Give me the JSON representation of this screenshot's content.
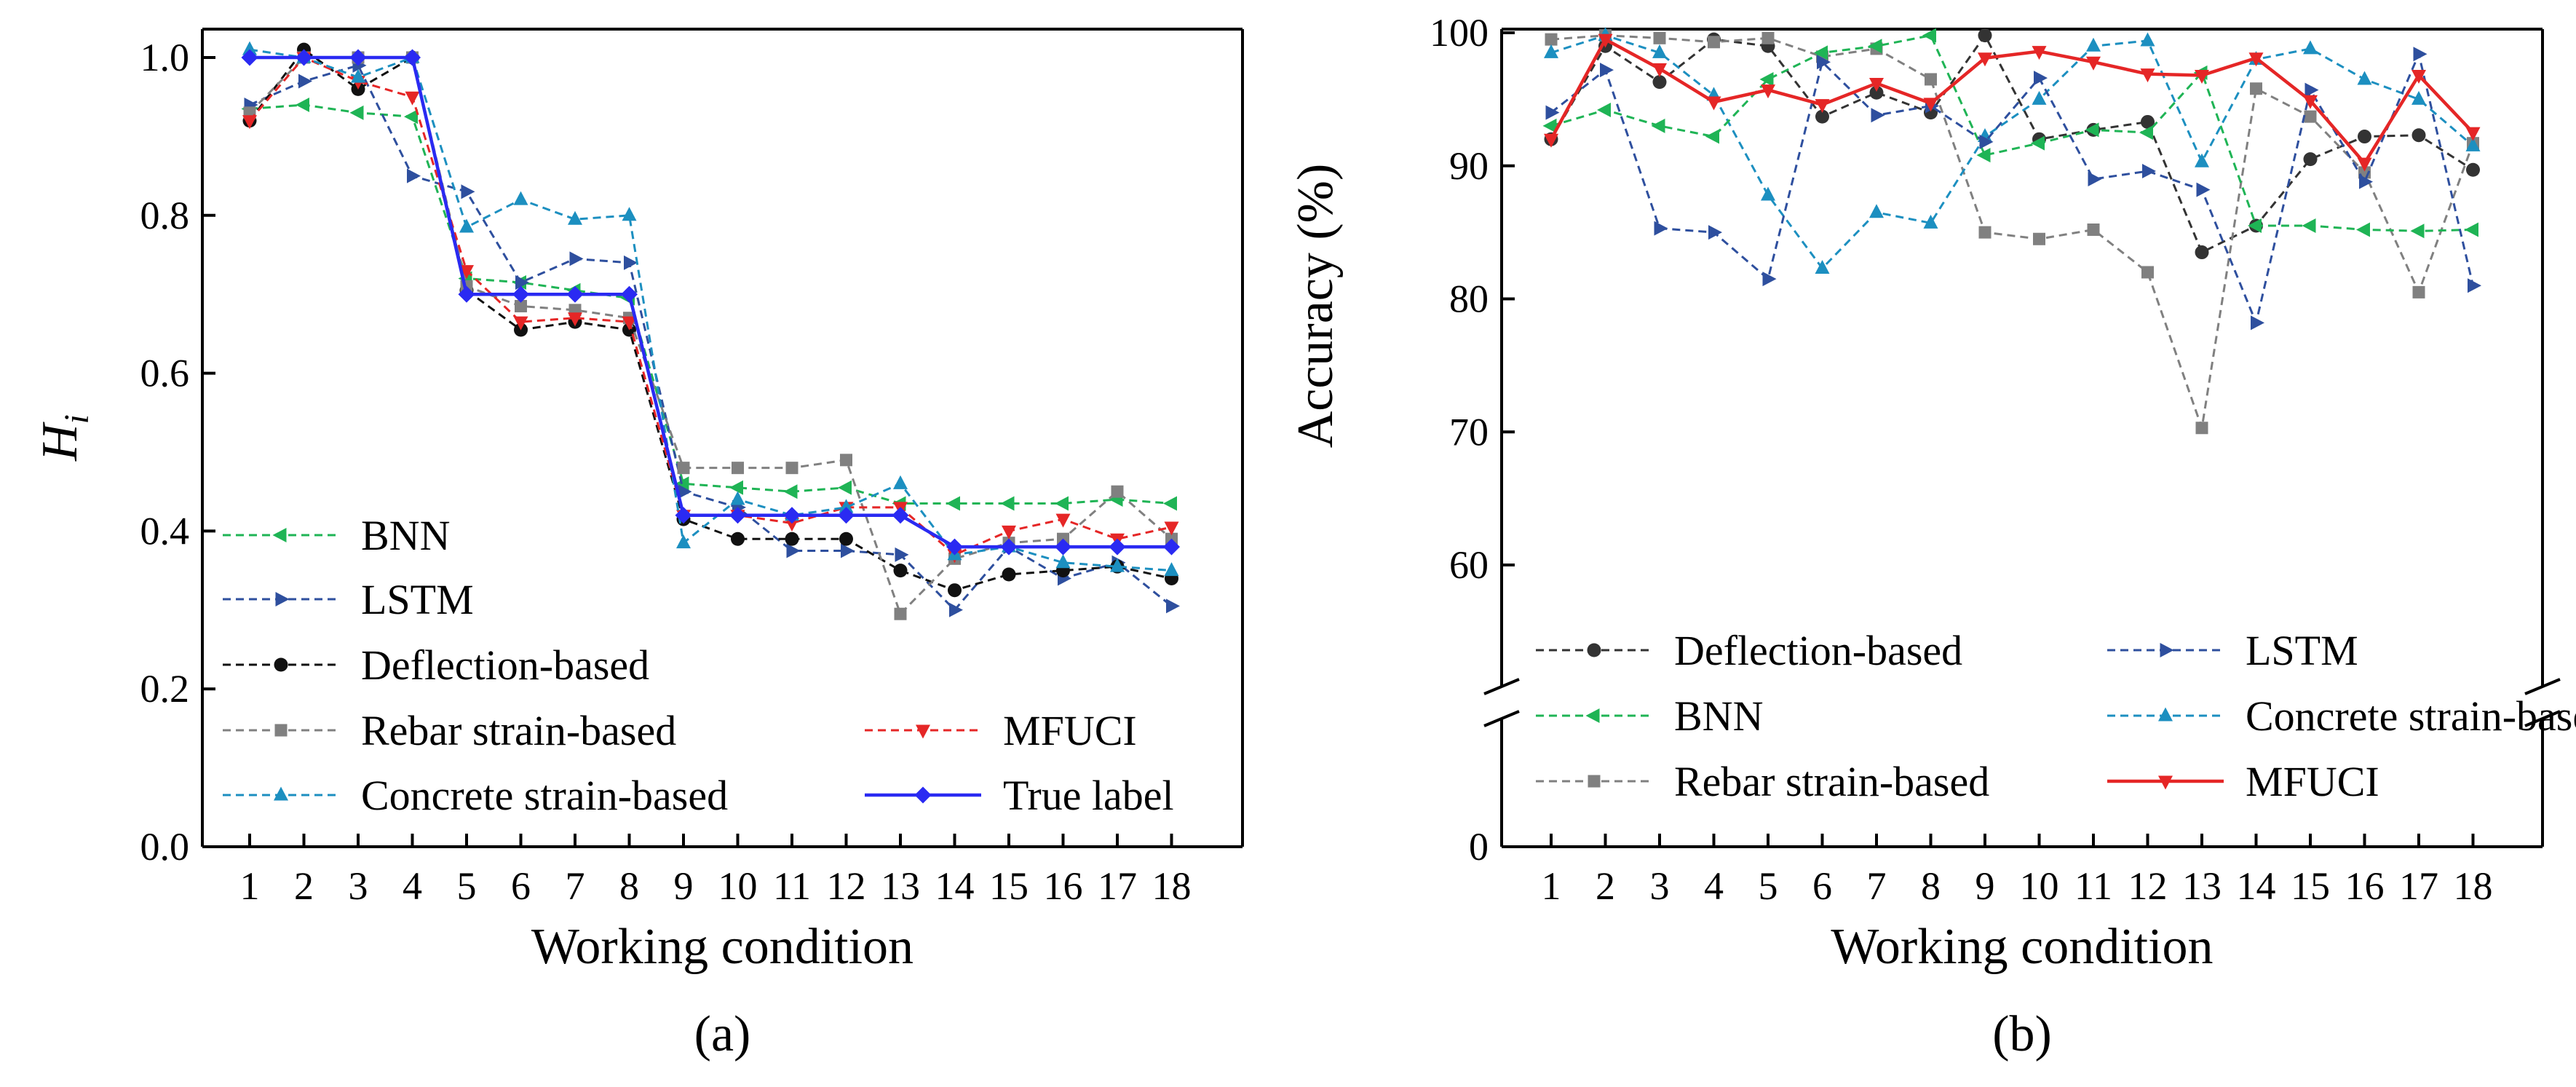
{
  "chart_data": [
    {
      "id": "a",
      "type": "line",
      "panel_label": "(a)",
      "xlabel": "Working condition",
      "ylabel": "H",
      "ylabel_sub": "i",
      "categories": [
        "1",
        "2",
        "3",
        "4",
        "5",
        "6",
        "7",
        "8",
        "9",
        "10",
        "11",
        "12",
        "13",
        "14",
        "15",
        "16",
        "17",
        "18"
      ],
      "ylim": [
        0.0,
        1.03
      ],
      "yticks": [
        0.0,
        0.2,
        0.4,
        0.6,
        0.8,
        1.0
      ],
      "ytick_labels": [
        "0.0",
        "0.2",
        "0.4",
        "0.6",
        "0.8",
        "1.0"
      ],
      "legend": [
        {
          "series": "BNN",
          "label": "BNN"
        },
        {
          "series": "LSTM",
          "label": "LSTM"
        },
        {
          "series": "Deflection",
          "label": "Deflection-based"
        },
        {
          "series": "Rebar",
          "label": "Rebar strain-based"
        },
        {
          "series": "MFUCI",
          "label": "MFUCI"
        },
        {
          "series": "Concrete",
          "label": "Concrete strain-based"
        },
        {
          "series": "True",
          "label": "True label"
        }
      ],
      "series": [
        {
          "key": "BNN",
          "name": "BNN",
          "color": "#1fb455",
          "marker": "triangle-left",
          "dashed": true,
          "values": [
            0.935,
            0.94,
            0.93,
            0.925,
            0.72,
            0.715,
            0.705,
            0.695,
            0.46,
            0.455,
            0.45,
            0.455,
            0.435,
            0.435,
            0.435,
            0.435,
            0.44,
            0.435
          ]
        },
        {
          "key": "LSTM",
          "name": "LSTM",
          "color": "#2e4f9e",
          "marker": "triangle-right",
          "dashed": true,
          "values": [
            0.94,
            0.97,
            0.99,
            0.85,
            0.83,
            0.715,
            0.745,
            0.74,
            0.45,
            0.43,
            0.375,
            0.375,
            0.37,
            0.3,
            0.38,
            0.34,
            0.36,
            0.305
          ]
        },
        {
          "key": "Deflection",
          "name": "Deflection-based",
          "color": "#111111",
          "marker": "circle",
          "dashed": true,
          "values": [
            0.92,
            1.01,
            0.96,
            1.0,
            0.705,
            0.655,
            0.665,
            0.655,
            0.415,
            0.39,
            0.39,
            0.39,
            0.35,
            0.325,
            0.345,
            0.35,
            0.355,
            0.34
          ]
        },
        {
          "key": "Rebar",
          "name": "Rebar strain-based",
          "color": "#808080",
          "marker": "square",
          "dashed": true,
          "values": [
            0.93,
            1.0,
            1.0,
            1.0,
            0.71,
            0.685,
            0.68,
            0.67,
            0.48,
            0.48,
            0.48,
            0.49,
            0.295,
            0.365,
            0.385,
            0.39,
            0.45,
            0.39
          ]
        },
        {
          "key": "MFUCI",
          "name": "MFUCI",
          "color": "#e52626",
          "marker": "triangle-down",
          "dashed": true,
          "values": [
            0.92,
            1.0,
            0.97,
            0.95,
            0.73,
            0.665,
            0.67,
            0.665,
            0.42,
            0.42,
            0.41,
            0.43,
            0.43,
            0.37,
            0.4,
            0.415,
            0.39,
            0.405
          ]
        },
        {
          "key": "Concrete",
          "name": "Concrete strain-based",
          "color": "#1c8fc0",
          "marker": "triangle-up",
          "dashed": true,
          "values": [
            1.01,
            1.0,
            0.975,
            1.0,
            0.785,
            0.82,
            0.795,
            0.8,
            0.385,
            0.44,
            0.42,
            0.43,
            0.46,
            0.37,
            0.38,
            0.36,
            0.355,
            0.35
          ]
        },
        {
          "key": "True",
          "name": "True label",
          "color": "#2a2af2",
          "marker": "diamond",
          "dashed": false,
          "values": [
            1.0,
            1.0,
            1.0,
            1.0,
            0.7,
            0.7,
            0.7,
            0.7,
            0.42,
            0.42,
            0.42,
            0.42,
            0.42,
            0.38,
            0.38,
            0.38,
            0.38,
            0.38
          ]
        }
      ]
    },
    {
      "id": "b",
      "type": "line",
      "panel_label": "(b)",
      "xlabel": "Working condition",
      "ylabel": "Accuracy (%)",
      "categories": [
        "1",
        "2",
        "3",
        "4",
        "5",
        "6",
        "7",
        "8",
        "9",
        "10",
        "11",
        "12",
        "13",
        "14",
        "15",
        "16",
        "17",
        "18"
      ],
      "ylim": [
        50,
        100
      ],
      "axis_break": true,
      "ybreak_bottom_label": "0",
      "yticks": [
        60,
        70,
        80,
        90,
        100
      ],
      "ytick_labels": [
        "60",
        "70",
        "80",
        "90",
        "100"
      ],
      "legend": [
        {
          "series": "Deflection",
          "label": "Deflection-based"
        },
        {
          "series": "BNN",
          "label": "BNN"
        },
        {
          "series": "Rebar",
          "label": "Rebar strain-based"
        },
        {
          "series": "LSTM",
          "label": "LSTM"
        },
        {
          "series": "Concrete",
          "label": "Concrete strain-based"
        },
        {
          "series": "MFUCI",
          "label": "MFUCI"
        }
      ],
      "series": [
        {
          "key": "Deflection",
          "name": "Deflection-based",
          "color": "#333333",
          "marker": "circle",
          "dashed": true,
          "values": [
            92,
            99,
            96.3,
            99.5,
            99,
            93.7,
            95.5,
            94,
            99.8,
            92,
            92.7,
            93.3,
            83.5,
            85.5,
            90.5,
            92.2,
            92.3,
            89.7
          ]
        },
        {
          "key": "Rebar",
          "name": "Rebar strain-based",
          "color": "#808080",
          "marker": "square",
          "dashed": true,
          "values": [
            99.5,
            99.8,
            99.6,
            99.3,
            99.6,
            98.2,
            98.8,
            96.5,
            85,
            84.5,
            85.2,
            82,
            70.3,
            95.8,
            93.7,
            89.5,
            80.5,
            91.7
          ]
        },
        {
          "key": "Concrete",
          "name": "Concrete strain-based",
          "color": "#1c8fc0",
          "marker": "triangle-up",
          "dashed": true,
          "values": [
            98.5,
            99.8,
            98.5,
            95.3,
            87.8,
            82.3,
            86.5,
            85.7,
            92.2,
            95,
            99,
            99.4,
            90.3,
            98,
            98.8,
            96.5,
            95,
            91.5
          ]
        },
        {
          "key": "BNN",
          "name": "BNN",
          "color": "#1fb455",
          "marker": "triangle-left",
          "dashed": true,
          "values": [
            93,
            94.2,
            93,
            92.2,
            96.5,
            98.5,
            99,
            99.8,
            90.8,
            91.7,
            92.7,
            92.5,
            97,
            85.5,
            85.5,
            85.2,
            85.1,
            85.2
          ]
        },
        {
          "key": "LSTM",
          "name": "LSTM",
          "color": "#2e4f9e",
          "marker": "triangle-right",
          "dashed": true,
          "values": [
            94,
            97.2,
            85.3,
            85,
            81.5,
            97.8,
            93.8,
            94.5,
            91.8,
            96.6,
            89,
            89.6,
            88.2,
            78.2,
            95.7,
            88.8,
            98.4,
            81
          ]
        },
        {
          "key": "MFUCI",
          "name": "MFUCI",
          "color": "#e52626",
          "marker": "triangle-down",
          "dashed": false,
          "values": [
            92,
            99.5,
            97.3,
            94.8,
            95.7,
            94.6,
            96.2,
            94.7,
            98.1,
            98.6,
            97.8,
            96.9,
            96.8,
            98.1,
            94.9,
            90.2,
            96.8,
            92.5
          ]
        }
      ]
    }
  ]
}
